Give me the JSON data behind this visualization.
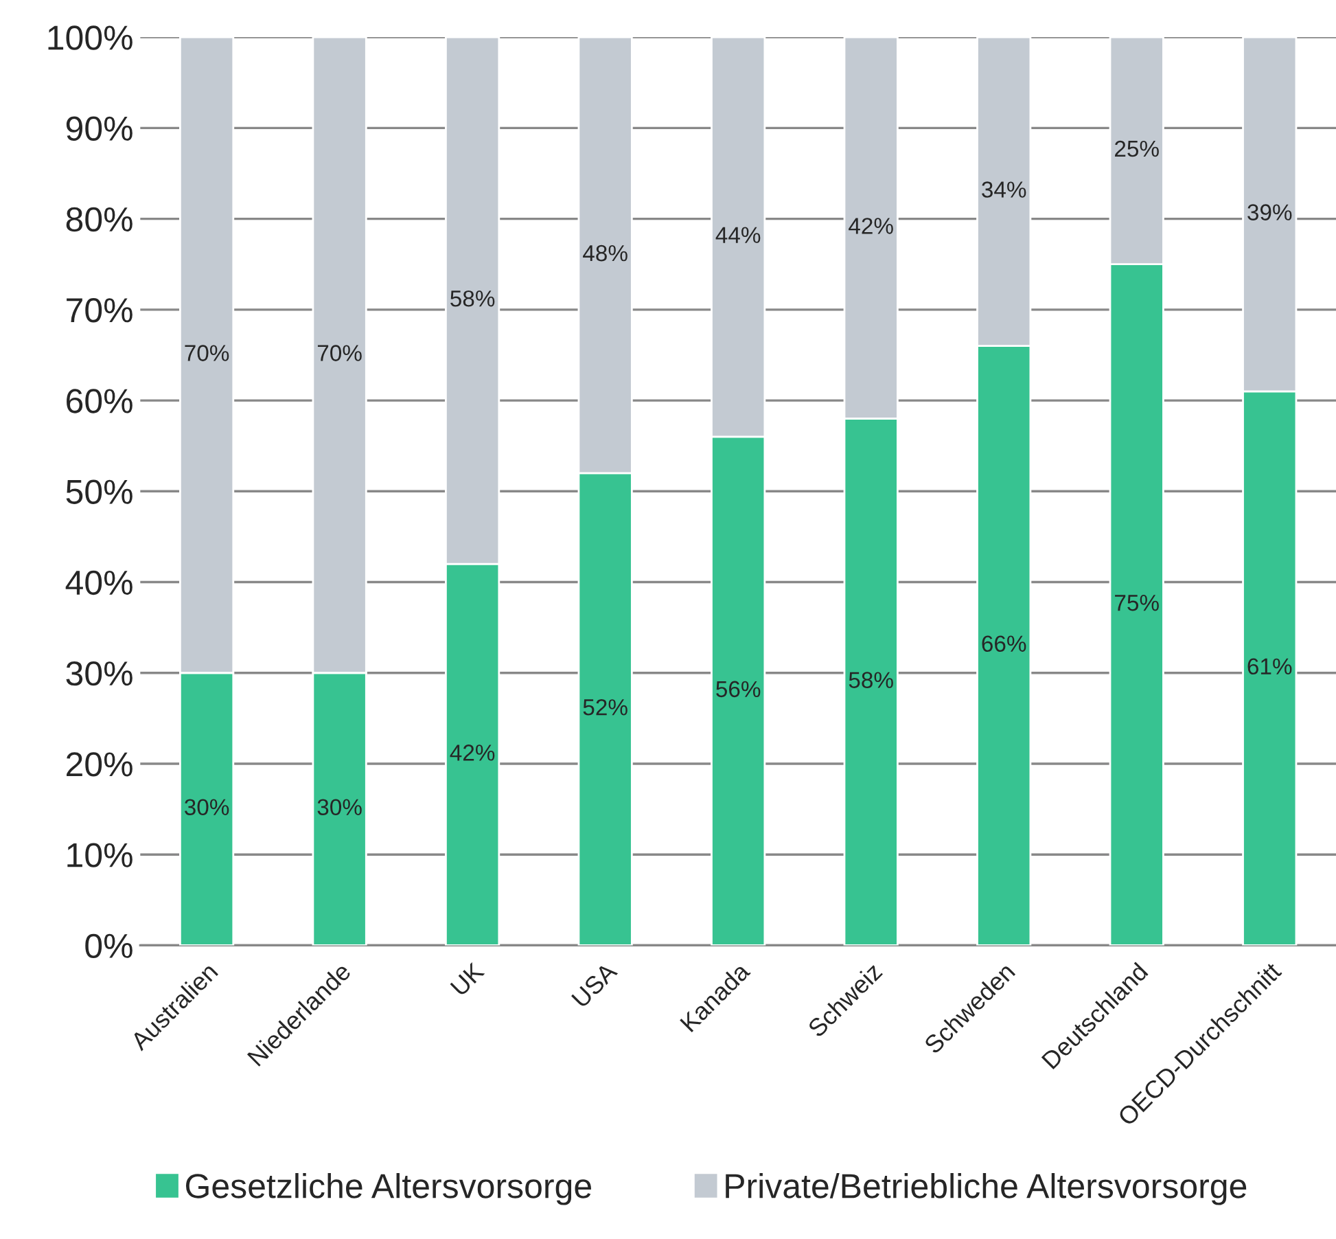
{
  "chart_data": {
    "type": "bar",
    "stacked": true,
    "categories": [
      "Australien",
      "Niederlande",
      "UK",
      "USA",
      "Kanada",
      "Schweiz",
      "Schweden",
      "Deutschland",
      "OECD-Durchschnitt"
    ],
    "series": [
      {
        "name": "Gesetzliche Altersvorsorge",
        "color": "#37c391",
        "values": [
          30,
          30,
          42,
          52,
          56,
          58,
          66,
          75,
          61
        ],
        "value_labels": [
          "30%",
          "30%",
          "42%",
          "52%",
          "56%",
          "58%",
          "66%",
          "75%",
          "61%"
        ]
      },
      {
        "name": "Private/Betriebliche Altersvorsorge",
        "color": "#c3cad2",
        "values": [
          70,
          70,
          58,
          48,
          44,
          42,
          34,
          25,
          39
        ],
        "value_labels": [
          "70%",
          "70%",
          "58%",
          "48%",
          "44%",
          "42%",
          "34%",
          "25%",
          "39%"
        ]
      }
    ],
    "ylim": [
      0,
      100
    ],
    "yticks": [
      {
        "value": 0,
        "label": "0%"
      },
      {
        "value": 10,
        "label": "10%"
      },
      {
        "value": 20,
        "label": "20%"
      },
      {
        "value": 30,
        "label": "30%"
      },
      {
        "value": 40,
        "label": "40%"
      },
      {
        "value": 50,
        "label": "50%"
      },
      {
        "value": 60,
        "label": "60%"
      },
      {
        "value": 70,
        "label": "70%"
      },
      {
        "value": 80,
        "label": "80%"
      },
      {
        "value": 90,
        "label": "90%"
      },
      {
        "value": 100,
        "label": "100%"
      }
    ],
    "grid": "y",
    "legend": "bottom"
  }
}
